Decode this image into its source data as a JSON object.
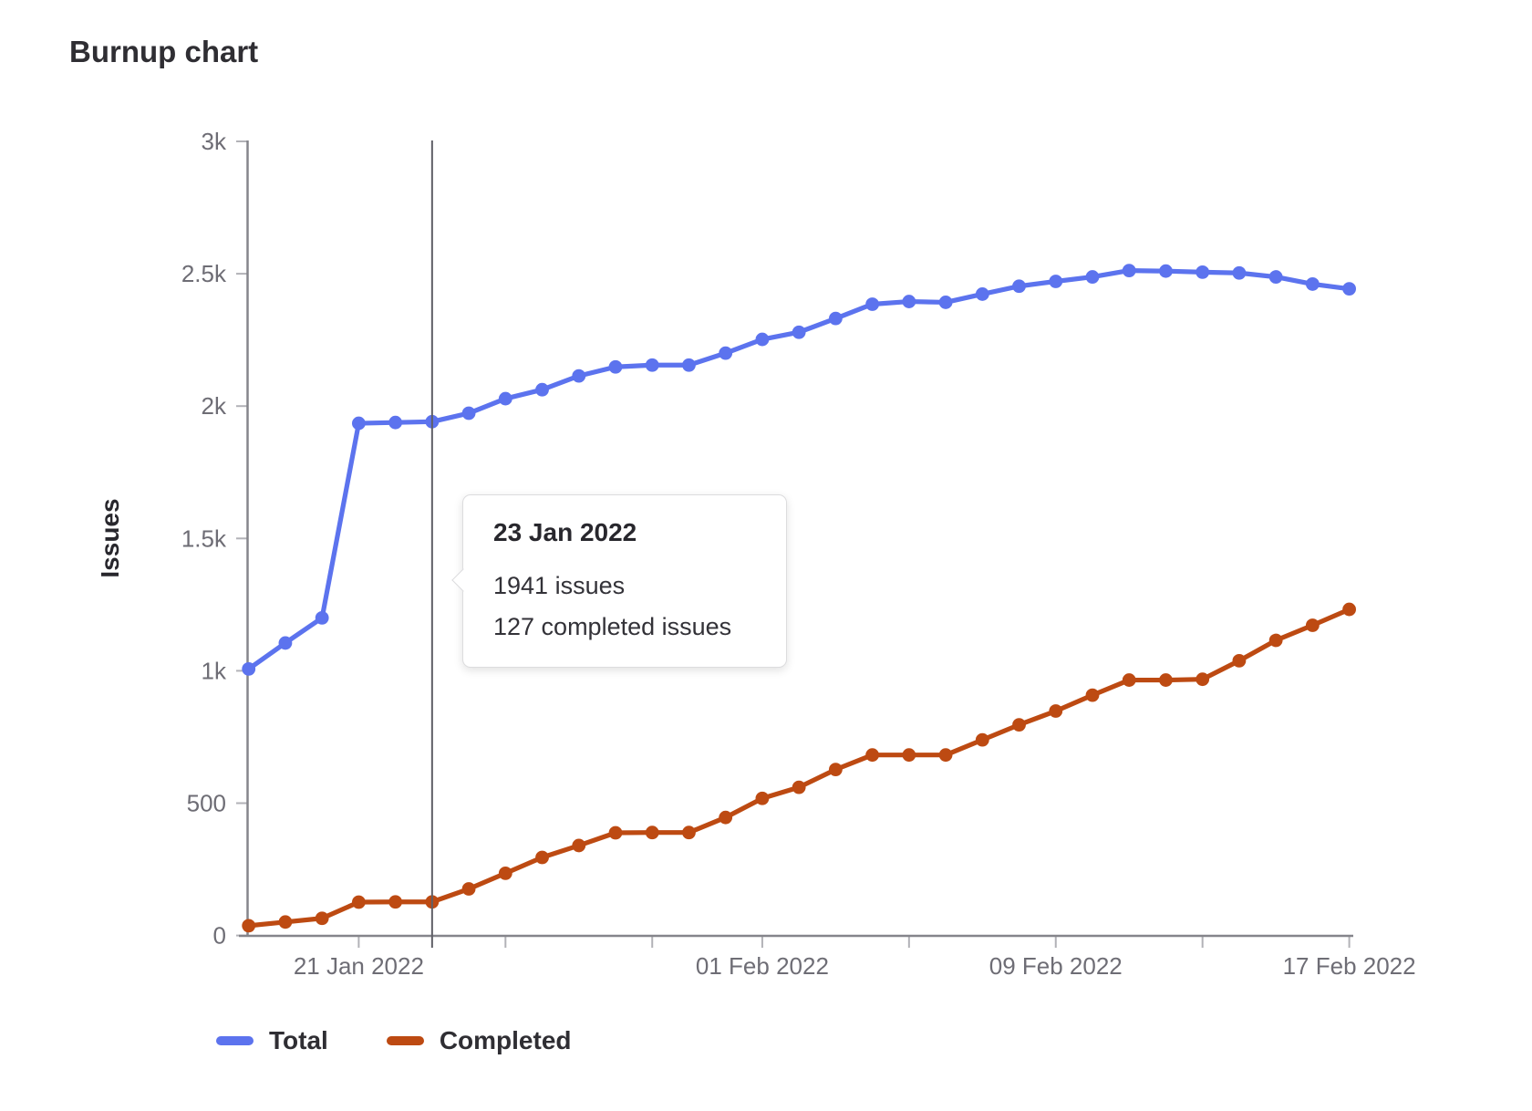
{
  "page": {
    "title": "Burnup chart"
  },
  "chart_data": {
    "type": "line",
    "title": "Burnup chart",
    "xlabel": "",
    "ylabel": "Issues",
    "ylim": [
      0,
      3000
    ],
    "grid": false,
    "legend_position": "bottom",
    "x": [
      "18 Jan 2022",
      "19 Jan 2022",
      "20 Jan 2022",
      "21 Jan 2022",
      "22 Jan 2022",
      "23 Jan 2022",
      "24 Jan 2022",
      "25 Jan 2022",
      "26 Jan 2022",
      "27 Jan 2022",
      "28 Jan 2022",
      "29 Jan 2022",
      "30 Jan 2022",
      "31 Jan 2022",
      "01 Feb 2022",
      "02 Feb 2022",
      "03 Feb 2022",
      "04 Feb 2022",
      "05 Feb 2022",
      "06 Feb 2022",
      "07 Feb 2022",
      "08 Feb 2022",
      "09 Feb 2022",
      "10 Feb 2022",
      "11 Feb 2022",
      "12 Feb 2022",
      "13 Feb 2022",
      "14 Feb 2022",
      "15 Feb 2022",
      "16 Feb 2022",
      "17 Feb 2022"
    ],
    "y_ticks": [
      {
        "value": 0,
        "label": "0"
      },
      {
        "value": 500,
        "label": "500"
      },
      {
        "value": 1000,
        "label": "1k"
      },
      {
        "value": 1500,
        "label": "1.5k"
      },
      {
        "value": 2000,
        "label": "2k"
      },
      {
        "value": 2500,
        "label": "2.5k"
      },
      {
        "value": 3000,
        "label": "3k"
      }
    ],
    "x_ticks": [
      {
        "index": 3,
        "label": "21 Jan 2022"
      },
      {
        "index": 7,
        "label": ""
      },
      {
        "index": 11,
        "label": ""
      },
      {
        "index": 14,
        "label": "01 Feb 2022"
      },
      {
        "index": 18,
        "label": ""
      },
      {
        "index": 22,
        "label": "09 Feb 2022"
      },
      {
        "index": 26,
        "label": ""
      },
      {
        "index": 30,
        "label": "17 Feb 2022"
      }
    ],
    "series": [
      {
        "name": "Total",
        "color": "#5c73ee",
        "values": [
          1007,
          1105,
          1200,
          1935,
          1938,
          1941,
          1973,
          2028,
          2062,
          2114,
          2148,
          2155,
          2155,
          2200,
          2252,
          2279,
          2331,
          2385,
          2395,
          2392,
          2423,
          2453,
          2471,
          2488,
          2512,
          2510,
          2506,
          2503,
          2488,
          2461,
          2443
        ]
      },
      {
        "name": "Completed",
        "color": "#bd4a12",
        "values": [
          37,
          51,
          65,
          126,
          127,
          127,
          176,
          235,
          295,
          340,
          388,
          389,
          389,
          446,
          518,
          560,
          627,
          682,
          682,
          682,
          739,
          796,
          848,
          908,
          965,
          965,
          968,
          1038,
          1115,
          1172,
          1232
        ]
      }
    ],
    "hover_point": {
      "index": 5,
      "date": "23 Jan 2022",
      "total": 1941,
      "completed": 127
    }
  },
  "tooltip": {
    "title": "23 Jan 2022",
    "lines": [
      "1941 issues",
      "127 completed issues"
    ]
  },
  "legend": [
    {
      "label": "Total"
    },
    {
      "label": "Completed"
    }
  ]
}
